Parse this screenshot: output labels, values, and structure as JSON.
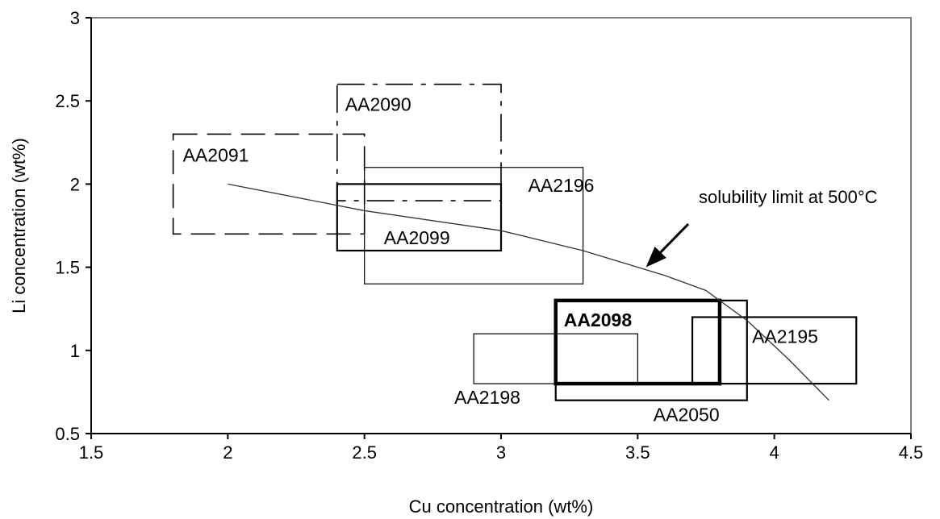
{
  "chart_data": {
    "type": "scatter",
    "xlabel": "Cu concentration (wt%)",
    "ylabel": "Li concentration (wt%)",
    "xlim": [
      1.5,
      4.5
    ],
    "ylim": [
      0.5,
      3
    ],
    "xticks": [
      "1.5",
      "2",
      "2.5",
      "3",
      "3.5",
      "4",
      "4.5"
    ],
    "yticks": [
      "0.5",
      "1",
      "1.5",
      "2",
      "2.5",
      "3"
    ],
    "grid": false,
    "legend": "none",
    "regions": [
      {
        "name": "AA2091",
        "cu": [
          1.8,
          2.5
        ],
        "li": [
          1.7,
          2.3
        ],
        "style": "dashed-long"
      },
      {
        "name": "AA2090",
        "cu": [
          2.4,
          3.0
        ],
        "li": [
          1.9,
          2.6
        ],
        "style": "dashed-dash-dot"
      },
      {
        "name": "AA2196",
        "cu": [
          2.5,
          3.3
        ],
        "li": [
          1.4,
          2.1
        ],
        "style": "thin"
      },
      {
        "name": "AA2099",
        "cu": [
          2.4,
          3.0
        ],
        "li": [
          1.6,
          2.0
        ],
        "style": "medium"
      },
      {
        "name": "AA2098",
        "cu": [
          3.2,
          3.8
        ],
        "li": [
          0.8,
          1.3
        ],
        "style": "thick"
      },
      {
        "name": "AA2198",
        "cu": [
          2.9,
          3.5
        ],
        "li": [
          0.8,
          1.1
        ],
        "style": "thin"
      },
      {
        "name": "AA2050",
        "cu": [
          3.2,
          3.9
        ],
        "li": [
          0.7,
          1.3
        ],
        "style": "medium"
      },
      {
        "name": "AA2195",
        "cu": [
          3.7,
          4.3
        ],
        "li": [
          0.8,
          1.2
        ],
        "style": "medium"
      }
    ],
    "curve": {
      "name": "solubility limit at 500°C",
      "x": [
        2.0,
        2.5,
        3.0,
        3.3,
        3.6,
        3.75,
        3.9,
        4.05,
        4.2
      ],
      "y": [
        2.0,
        1.84,
        1.72,
        1.6,
        1.45,
        1.36,
        1.18,
        0.95,
        0.7
      ]
    },
    "annotation": {
      "text": "solubility limit at 500°C",
      "arrow_to": [
        3.53,
        1.5
      ]
    }
  }
}
